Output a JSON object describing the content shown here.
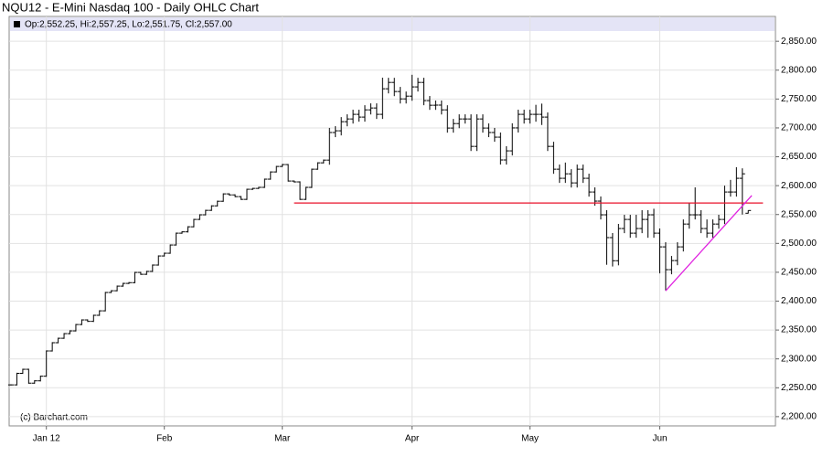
{
  "chart_data": {
    "type": "ohlc",
    "title": "NQU12 - E-Mini Nasdaq 100 - Daily OHLC Chart",
    "legend_text": "Op:2,552.25, Hi:2,557.25, Lo:2,551.75, Cl:2,557.00",
    "credit": "(c) Barchart.com",
    "color": "#000000",
    "grid": true,
    "categories": [
      null,
      null,
      null,
      null,
      null,
      null,
      "Jan 12",
      null,
      null,
      null,
      null,
      null,
      null,
      null,
      null,
      null,
      null,
      null,
      null,
      null,
      null,
      null,
      null,
      null,
      null,
      null,
      "Feb",
      null,
      null,
      null,
      null,
      null,
      null,
      null,
      null,
      null,
      null,
      null,
      null,
      null,
      null,
      null,
      null,
      null,
      null,
      null,
      "Mar",
      null,
      null,
      null,
      null,
      null,
      null,
      null,
      null,
      null,
      null,
      null,
      null,
      null,
      null,
      null,
      null,
      null,
      null,
      null,
      null,
      null,
      "Apr",
      null,
      null,
      null,
      null,
      null,
      null,
      null,
      null,
      null,
      null,
      null,
      null,
      null,
      null,
      null,
      null,
      null,
      null,
      null,
      "May",
      null,
      null,
      null,
      null,
      null,
      null,
      null,
      null,
      null,
      null,
      null,
      null,
      null,
      null,
      null,
      null,
      null,
      null,
      null,
      null,
      null,
      "Jun",
      null,
      null,
      null,
      null,
      null,
      null,
      null,
      null,
      null,
      null,
      null,
      null,
      null,
      null,
      null
    ],
    "open": [
      2255,
      2255,
      2275,
      2282,
      2258,
      2262,
      2270,
      2313.75,
      2328,
      2335.75,
      2343.75,
      2348.5,
      2359.5,
      2367.5,
      2365,
      2375.5,
      2383.25,
      2415,
      2418,
      2426,
      2430.75,
      2432,
      2449.75,
      2446.5,
      2451.5,
      2462.5,
      2478.25,
      2483,
      2497.25,
      2517.75,
      2520,
      2528.75,
      2541.5,
      2549.5,
      2557.25,
      2565,
      2573,
      2585.75,
      2584,
      2581,
      2576.25,
      2593.75,
      2595.25,
      2597,
      2611.25,
      2623.75,
      2633.25,
      2636.5,
      2608,
      2606.5,
      2576.25,
      2597,
      2628.5,
      2639.5,
      2644.25,
      2692,
      2695,
      2710.75,
      2715.5,
      2723.5,
      2718.75,
      2731.25,
      2734.5,
      2723.5,
      2767.75,
      2778.75,
      2763,
      2750.25,
      2755,
      2771,
      2778.75,
      2747.25,
      2739.25,
      2739.5,
      2731.25,
      2699.75,
      2707.5,
      2715.5,
      2715.5,
      2668,
      2715.5,
      2699.75,
      2692,
      2684,
      2644.5,
      2660.25,
      2700,
      2723.5,
      2715.5,
      2723.5,
      2723.5,
      2718.75,
      2668,
      2628.5,
      2612.75,
      2620.5,
      2604.75,
      2628.5,
      2612.75,
      2589,
      2573.25,
      2549.5,
      2510,
      2470,
      2525.75,
      2541.5,
      2517.75,
      2525.75,
      2541.5,
      2549.5,
      2517.75,
      2494,
      2454.5,
      2470.25,
      2494,
      2533.5,
      2549.5,
      2549.5,
      2525.75,
      2517.75,
      2533.5,
      2541.5,
      2589,
      2589,
      2612.75,
      2552.25
    ],
    "high": [
      2256,
      2276,
      2283,
      2283,
      2263,
      2271,
      2314.75,
      2329,
      2336.75,
      2344.75,
      2349.5,
      2360.5,
      2368.5,
      2368.5,
      2376.5,
      2384.25,
      2416,
      2419,
      2427,
      2431.75,
      2433,
      2450.75,
      2450.75,
      2452.5,
      2463.5,
      2479.25,
      2484,
      2498.25,
      2518.75,
      2521,
      2529.75,
      2542.5,
      2550.5,
      2558.25,
      2566,
      2574,
      2586.75,
      2586.75,
      2585,
      2582,
      2594.75,
      2596.25,
      2598,
      2612.25,
      2624.75,
      2634.25,
      2637.5,
      2637.5,
      2609,
      2607.5,
      2598,
      2629.5,
      2640.5,
      2645.25,
      2700,
      2703,
      2718.75,
      2723.5,
      2731.5,
      2731.5,
      2739.25,
      2742.5,
      2742.5,
      2787,
      2786.75,
      2786.75,
      2771,
      2763,
      2792,
      2786.75,
      2786.75,
      2755.25,
      2747.5,
      2747.5,
      2739.25,
      2715.5,
      2723.5,
      2723.5,
      2723.5,
      2723.5,
      2723.5,
      2707.75,
      2700,
      2692,
      2668.25,
      2708,
      2731.5,
      2731.5,
      2731.5,
      2740,
      2742,
      2726.75,
      2676,
      2636.5,
      2640,
      2628.5,
      2636.5,
      2636.5,
      2620.75,
      2597,
      2581.25,
      2557.5,
      2518,
      2533.75,
      2549.5,
      2549.5,
      2549.5,
      2557.5,
      2557.5,
      2560,
      2525.75,
      2502,
      2478.25,
      2502,
      2541.5,
      2570,
      2597,
      2557.5,
      2541.5,
      2541.5,
      2549.5,
      2600,
      2610,
      2632,
      2630,
      2557.25
    ],
    "low": [
      2254,
      2254,
      2274,
      2257,
      2257,
      2261,
      2269,
      2312.75,
      2327,
      2334.75,
      2342.75,
      2347.5,
      2358.5,
      2364,
      2364,
      2374.5,
      2382.25,
      2414,
      2417,
      2425,
      2429.75,
      2431,
      2445.5,
      2445.5,
      2450.5,
      2461.5,
      2477.25,
      2482,
      2496.25,
      2516.75,
      2519,
      2527.75,
      2540.5,
      2548.5,
      2556.25,
      2564,
      2572,
      2583,
      2580,
      2575.25,
      2575.25,
      2592.75,
      2594.25,
      2596,
      2610.25,
      2622.75,
      2632.25,
      2607,
      2605.5,
      2575.25,
      2575.25,
      2596,
      2627.5,
      2638.5,
      2636.25,
      2684,
      2687,
      2702.75,
      2707.5,
      2710.75,
      2710.75,
      2723.25,
      2715.5,
      2715.5,
      2759.75,
      2755,
      2742.25,
      2742.25,
      2747,
      2763,
      2739.25,
      2731.25,
      2731.25,
      2723.25,
      2691.75,
      2691.75,
      2699.5,
      2707.5,
      2660,
      2660,
      2691.75,
      2684,
      2676,
      2636.5,
      2636.5,
      2652.25,
      2692,
      2707.5,
      2707.5,
      2710.75,
      2705,
      2660,
      2620.5,
      2604.75,
      2604.75,
      2596.75,
      2596.75,
      2604.75,
      2581,
      2565.25,
      2541.5,
      2463,
      2460,
      2462,
      2517.75,
      2509.75,
      2509.75,
      2517.75,
      2509.75,
      2509.75,
      2448,
      2418,
      2446.5,
      2462.25,
      2486,
      2525.5,
      2541.5,
      2517.75,
      2509.75,
      2509.75,
      2525.5,
      2533.5,
      2581,
      2581,
      2550,
      2551.75
    ],
    "close": [
      2255,
      2275,
      2282,
      2258,
      2262,
      2270,
      2313.75,
      2328,
      2335.75,
      2343.75,
      2348.5,
      2359.5,
      2367.5,
      2365,
      2375.5,
      2383.25,
      2415,
      2418,
      2426,
      2430.75,
      2432,
      2449.75,
      2446.5,
      2451.5,
      2462.5,
      2478.25,
      2483,
      2497.25,
      2517.75,
      2520,
      2528.75,
      2541.5,
      2549.5,
      2557.25,
      2565,
      2573,
      2585.75,
      2584,
      2581,
      2576.25,
      2593.75,
      2595.25,
      2597,
      2611.25,
      2623.75,
      2633.25,
      2636.5,
      2608,
      2606.5,
      2576.25,
      2597,
      2628.5,
      2639.5,
      2644.25,
      2692,
      2695,
      2710.75,
      2715.5,
      2723.5,
      2718.75,
      2731.25,
      2734.5,
      2723.5,
      2767.75,
      2778.75,
      2763,
      2750.25,
      2755,
      2771,
      2778.75,
      2747.25,
      2739.25,
      2739.5,
      2731.25,
      2699.75,
      2707.5,
      2715.5,
      2715.5,
      2668,
      2715.5,
      2699.75,
      2692,
      2684,
      2644.5,
      2660.25,
      2700,
      2723.5,
      2715.5,
      2723.5,
      2723.5,
      2718.75,
      2668,
      2628.5,
      2612.75,
      2620.5,
      2604.75,
      2628.5,
      2612.75,
      2589,
      2573.25,
      2549.5,
      2510,
      2470,
      2525.75,
      2541.5,
      2517.75,
      2525.75,
      2541.5,
      2549.5,
      2517.75,
      2494,
      2454.5,
      2470.25,
      2494,
      2533.5,
      2549.5,
      2549.5,
      2525.75,
      2517.75,
      2533.5,
      2541.5,
      2589,
      2589,
      2612.75,
      2620.5,
      2557
    ],
    "ylim": [
      2184,
      2893
    ],
    "yticks": [
      {
        "value": 2200,
        "label": "2,200.00"
      },
      {
        "value": 2250,
        "label": "2,250.00"
      },
      {
        "value": 2300,
        "label": "2,300.00"
      },
      {
        "value": 2350,
        "label": "2,350.00"
      },
      {
        "value": 2400,
        "label": "2,400.00"
      },
      {
        "value": 2450,
        "label": "2,450.00"
      },
      {
        "value": 2500,
        "label": "2,500.00"
      },
      {
        "value": 2550,
        "label": "2,550.00"
      },
      {
        "value": 2600,
        "label": "2,600.00"
      },
      {
        "value": 2650,
        "label": "2,650.00"
      },
      {
        "value": 2700,
        "label": "2,700.00"
      },
      {
        "value": 2750,
        "label": "2,750.00"
      },
      {
        "value": 2800,
        "label": "2,800.00"
      },
      {
        "value": 2850,
        "label": "2,850.00"
      }
    ],
    "lines": [
      {
        "color": "#e8102a",
        "x": [
          48,
          127.5
        ],
        "y": [
          2570,
          2570
        ]
      },
      {
        "color": "#e020e0",
        "x": [
          111,
          125.6
        ],
        "y": [
          2418,
          2583
        ]
      }
    ]
  }
}
